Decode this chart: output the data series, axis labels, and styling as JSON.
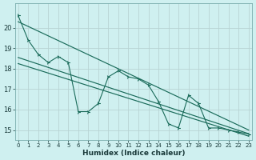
{
  "xlabel": "Humidex (Indice chaleur)",
  "bg_color": "#cff0f0",
  "grid_color": "#b8d4d4",
  "line_color": "#1a6b5a",
  "x_values": [
    0,
    1,
    2,
    3,
    4,
    5,
    6,
    7,
    8,
    9,
    10,
    11,
    12,
    13,
    14,
    15,
    16,
    17,
    18,
    19,
    20,
    21,
    22,
    23
  ],
  "series1": [
    20.6,
    19.4,
    18.7,
    18.3,
    18.6,
    18.3,
    15.9,
    15.9,
    16.3,
    17.6,
    17.9,
    17.6,
    17.5,
    17.2,
    16.4,
    15.3,
    15.1,
    16.7,
    16.3,
    15.1,
    15.1,
    15.0,
    14.9,
    14.8
  ],
  "ylim": [
    14.5,
    21.2
  ],
  "yticks": [
    15,
    16,
    17,
    18,
    19,
    20
  ],
  "xticks": [
    0,
    1,
    2,
    3,
    4,
    5,
    6,
    7,
    8,
    9,
    10,
    11,
    12,
    13,
    14,
    15,
    16,
    17,
    18,
    19,
    20,
    21,
    22,
    23
  ]
}
